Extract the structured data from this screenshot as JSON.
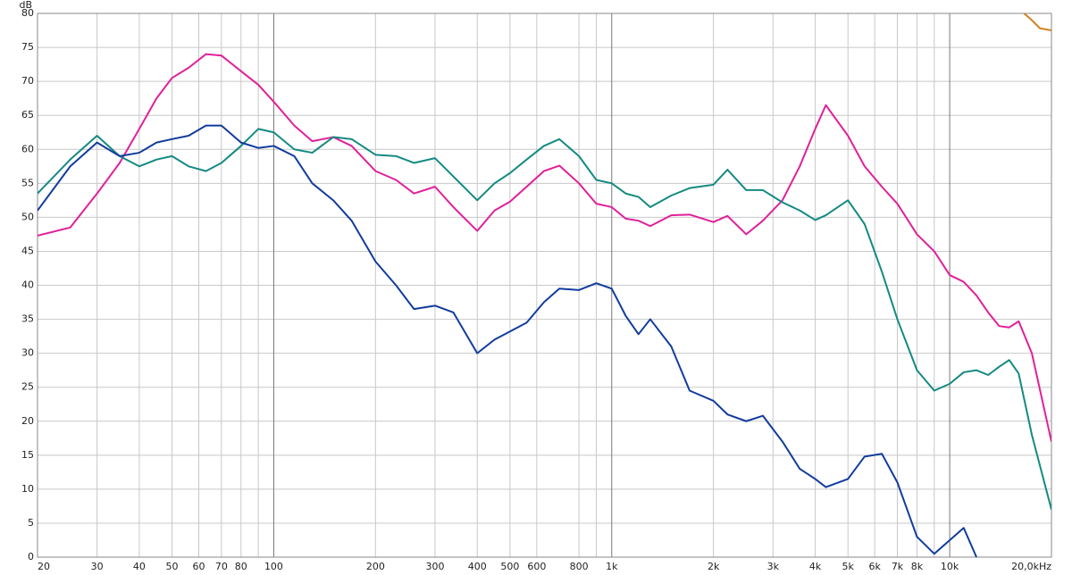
{
  "chart_data": {
    "type": "line",
    "y_axis_label": "dB",
    "log_x": true,
    "grid": true,
    "xlim": [
      20,
      20000
    ],
    "ylim": [
      0,
      80
    ],
    "yticks": [
      0,
      5,
      10,
      15,
      20,
      25,
      30,
      35,
      40,
      45,
      50,
      55,
      60,
      65,
      70,
      75,
      80
    ],
    "xticks": [
      20,
      30,
      40,
      50,
      60,
      70,
      80,
      100,
      200,
      300,
      400,
      500,
      600,
      800,
      {
        "value": 1000,
        "label": "1k"
      },
      {
        "value": 2000,
        "label": "2k"
      },
      {
        "value": 3000,
        "label": "3k"
      },
      {
        "value": 4000,
        "label": "4k"
      },
      {
        "value": 5000,
        "label": "5k"
      },
      {
        "value": 6000,
        "label": "6k"
      },
      {
        "value": 7000,
        "label": "7k"
      },
      {
        "value": 8000,
        "label": "8k"
      },
      {
        "value": 10000,
        "label": "10k"
      },
      {
        "value": 20000,
        "label": "20,0kHz"
      }
    ],
    "x_minor_grid": [
      90,
      900,
      9000
    ],
    "x_major_grid": [
      100,
      1000,
      10000
    ],
    "x": [
      20,
      25,
      30,
      35,
      40,
      45,
      50,
      56,
      63,
      70,
      80,
      90,
      100,
      115,
      130,
      150,
      170,
      200,
      230,
      260,
      300,
      340,
      400,
      450,
      500,
      560,
      630,
      700,
      800,
      900,
      1000,
      1100,
      1200,
      1300,
      1500,
      1700,
      2000,
      2200,
      2500,
      2800,
      3200,
      3600,
      4000,
      4300,
      5000,
      5600,
      6300,
      7000,
      8000,
      9000,
      10000,
      11000,
      12000,
      13000,
      14000,
      15000,
      16000,
      17500,
      20000
    ],
    "series": [
      {
        "color": "#e0209a",
        "values": [
          47.3,
          48.5,
          53.5,
          58,
          63,
          67.5,
          70.5,
          72,
          74,
          73.8,
          71.5,
          69.5,
          67,
          63.5,
          61.2,
          61.8,
          60.5,
          56.8,
          55.5,
          53.5,
          54.5,
          51.5,
          48,
          51,
          52.3,
          54.5,
          56.8,
          57.6,
          55,
          52,
          51.5,
          49.8,
          49.5,
          48.7,
          50.3,
          50.4,
          49.3,
          50.2,
          47.5,
          49.5,
          52.5,
          57.5,
          63,
          66.5,
          62,
          57.5,
          54.5,
          52,
          47.5,
          45,
          41.5,
          40.5,
          38.5,
          36,
          34,
          33.8,
          34.7,
          30,
          17
        ]
      },
      {
        "color": "#148a82",
        "values": [
          53.5,
          58.5,
          62,
          59,
          57.5,
          58.5,
          59,
          57.5,
          56.8,
          58,
          60.5,
          63,
          62.5,
          60,
          59.5,
          61.8,
          61.5,
          59.2,
          59,
          58,
          58.7,
          56,
          52.5,
          55,
          56.5,
          58.5,
          60.5,
          61.5,
          59,
          55.5,
          55,
          53.5,
          53,
          51.5,
          53.2,
          54.3,
          54.8,
          57,
          54,
          54,
          52.2,
          51,
          49.6,
          50.3,
          52.5,
          49,
          42,
          35,
          27.5,
          24.5,
          25.5,
          27.2,
          27.5,
          26.8,
          28,
          29,
          27,
          18,
          7
        ]
      },
      {
        "color": "#123c9c",
        "values": [
          51,
          57.5,
          61,
          59,
          59.5,
          61,
          61.5,
          62,
          63.5,
          63.5,
          61,
          60.2,
          60.5,
          59,
          55,
          52.5,
          49.5,
          43.5,
          40,
          36.5,
          37,
          36,
          30,
          32,
          33.2,
          34.5,
          37.5,
          39.5,
          39.3,
          40.3,
          39.5,
          35.5,
          32.8,
          35,
          31,
          24.5,
          23,
          21,
          20,
          20.8,
          17,
          13,
          11.5,
          10.3,
          11.5,
          14.8,
          15.2,
          11,
          3,
          0.5,
          2.5,
          4.3,
          0,
          null,
          null,
          null,
          null,
          null,
          null
        ]
      },
      {
        "color": "#d2821e",
        "x": [
          16600,
          17500,
          18500,
          20000
        ],
        "values": [
          80,
          79,
          77.8,
          77.5
        ]
      }
    ]
  }
}
